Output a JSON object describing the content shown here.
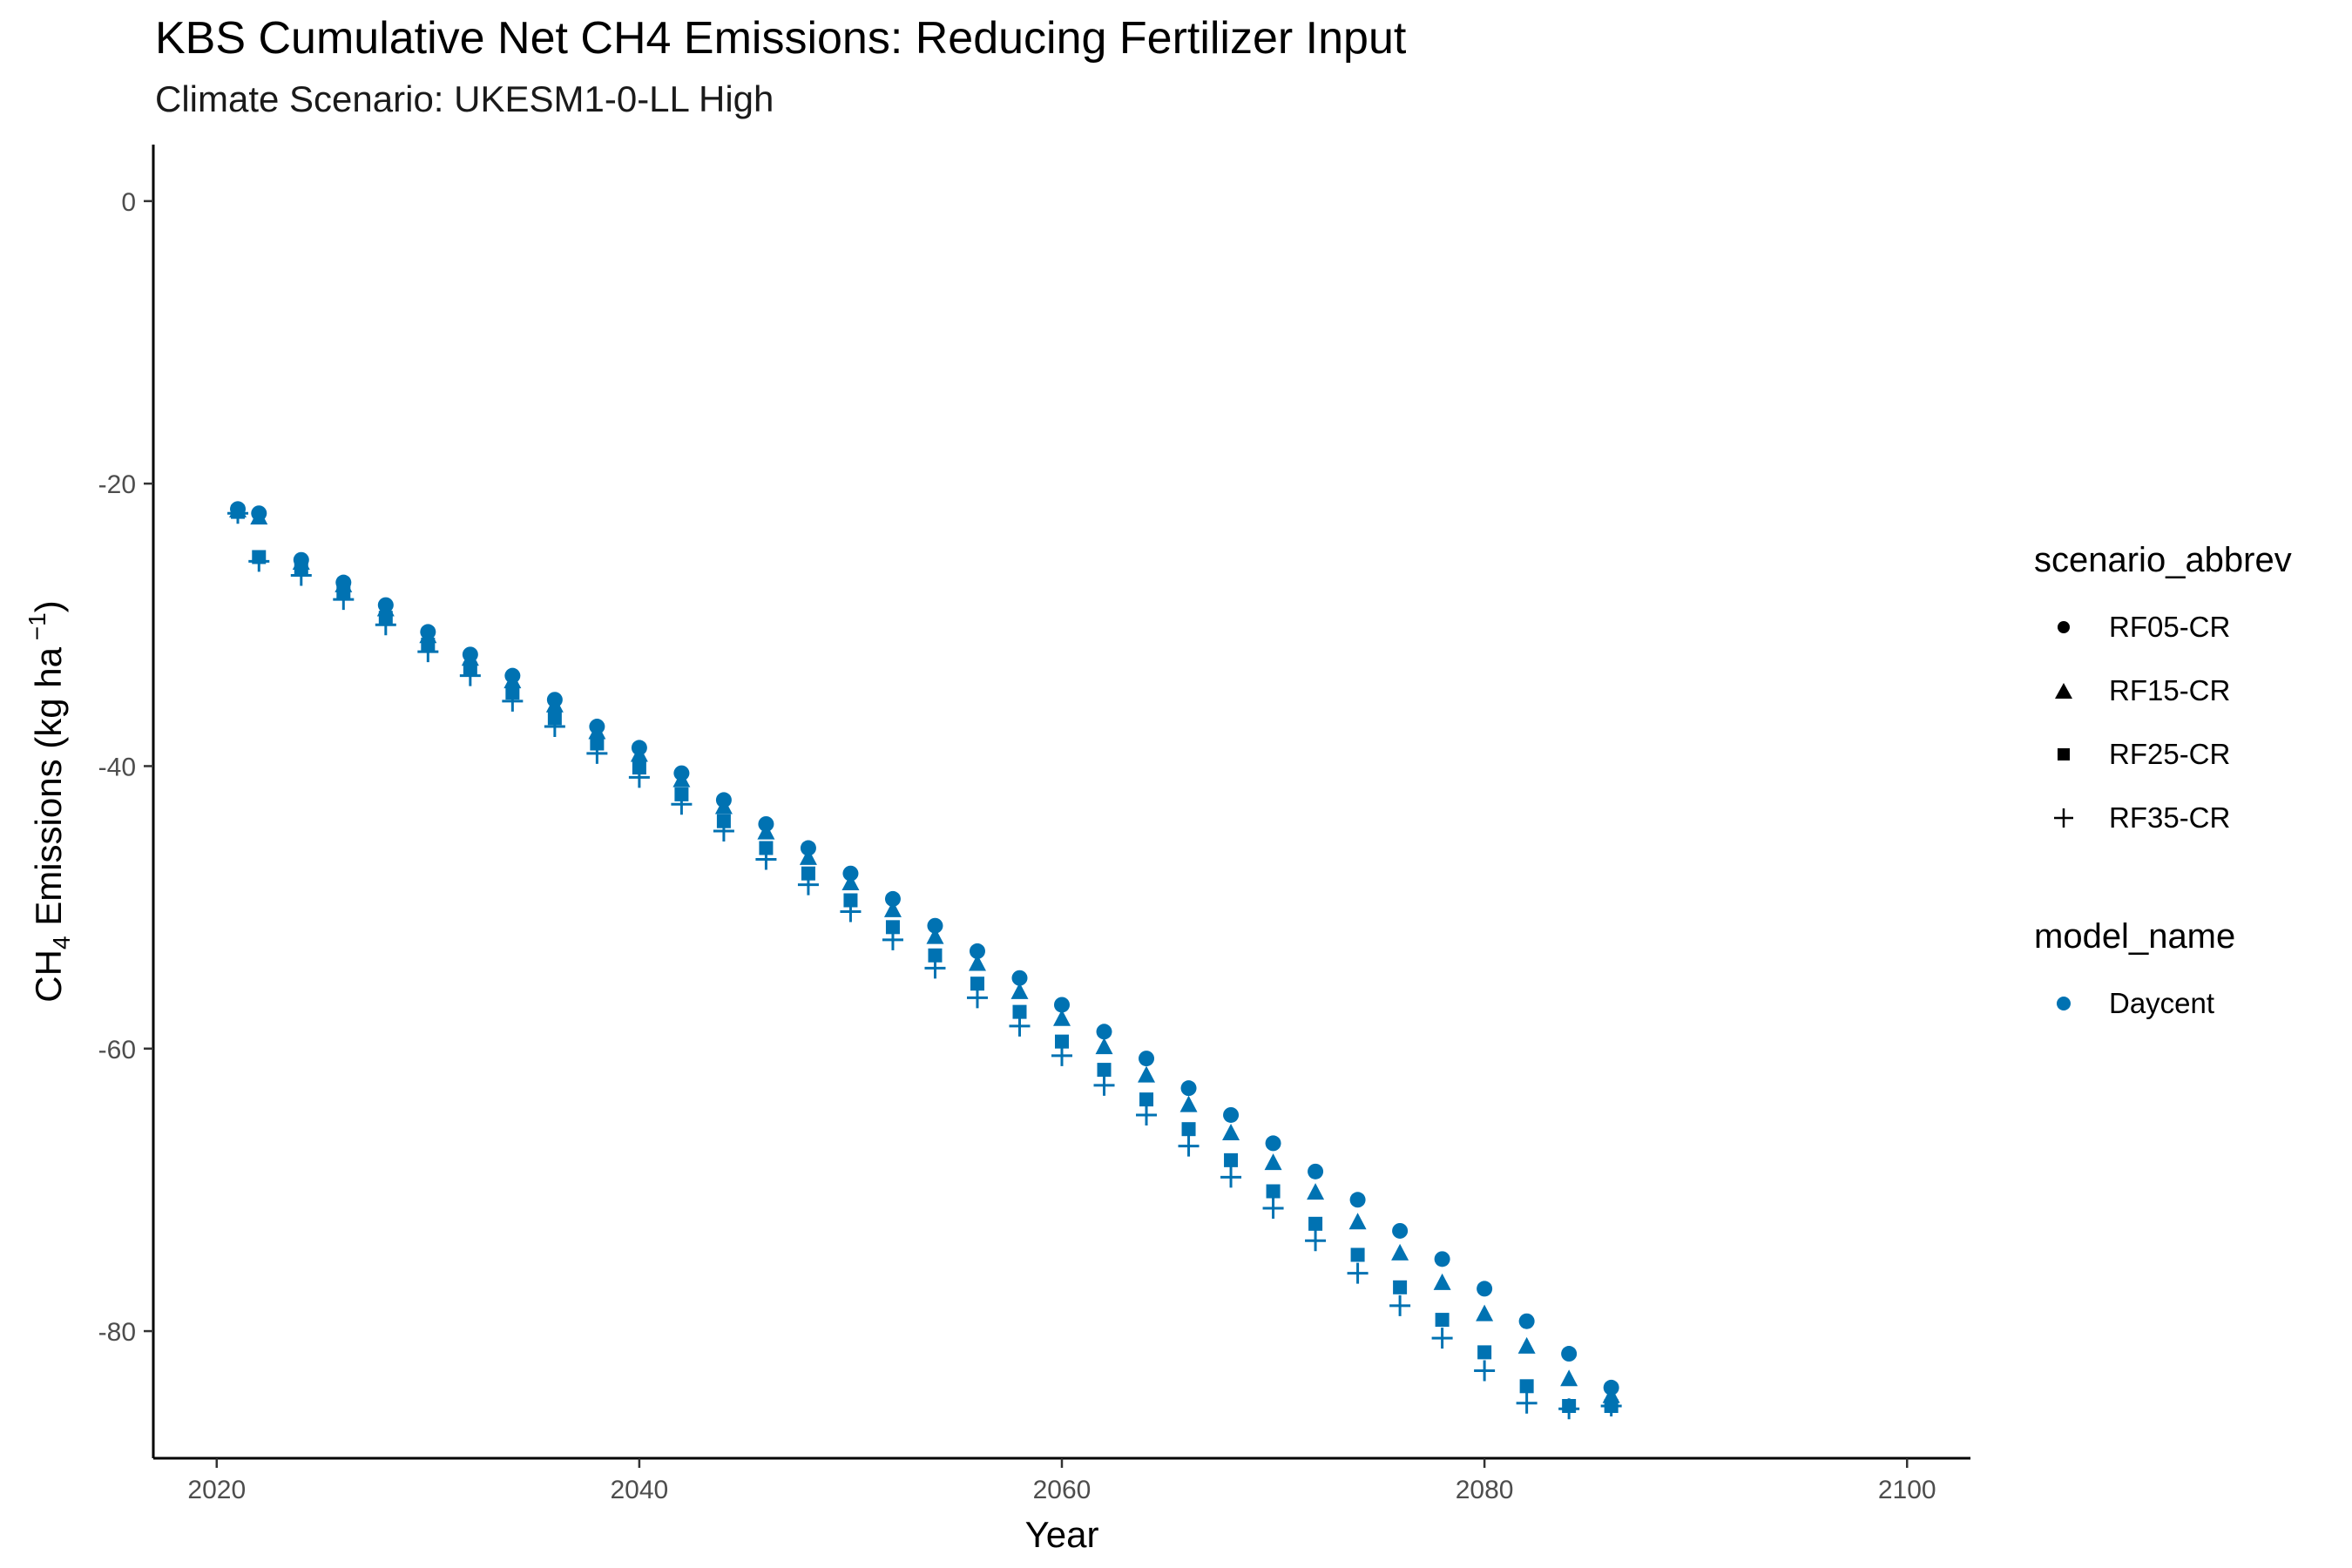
{
  "chart_data": {
    "type": "scatter",
    "title": "KBS  Cumulative Net CH4 Emissions: Reducing Fertilizer Input",
    "subtitle": "Climate Scenario: UKESM1-0-LL High",
    "xlabel": "Year",
    "ylabel": "CH4 Emissions (kg ha -1)",
    "xlim": [
      2017,
      2103
    ],
    "ylim": [
      -89,
      4
    ],
    "x_ticks": [
      2020,
      2040,
      2060,
      2080,
      2100
    ],
    "x_tick_labels": [
      "2020",
      "2040",
      "2060",
      "2080",
      "2100"
    ],
    "y_ticks": [
      0,
      -20,
      -40,
      -60,
      -80
    ],
    "y_tick_labels": [
      "0",
      "-20",
      "-40",
      "-60",
      "-80"
    ],
    "grid": false,
    "point_color": "#0072B2",
    "legend_position": "right",
    "legend": {
      "shape_title": "scenario_abbrev",
      "shape_entries": [
        {
          "label": "RF05-CR",
          "shape": "circle"
        },
        {
          "label": "RF15-CR",
          "shape": "triangle"
        },
        {
          "label": "RF25-CR",
          "shape": "square"
        },
        {
          "label": "RF35-CR",
          "shape": "plus"
        }
      ],
      "color_title": "model_name",
      "color_entries": [
        {
          "label": "Daycent",
          "color": "#0072B2"
        }
      ]
    },
    "series": [
      {
        "model": "Daycent",
        "scenario": "RF05-CR",
        "x": [
          2021,
          2022,
          2024,
          2026,
          2028,
          2030,
          2032,
          2034,
          2036,
          2038,
          2040,
          2042,
          2044,
          2046,
          2048,
          2050,
          2052,
          2054,
          2056,
          2058,
          2060,
          2062,
          2064,
          2066,
          2068,
          2070,
          2072,
          2074,
          2076,
          2078,
          2080,
          2082,
          2084,
          2086
        ],
        "y": [
          -21.8,
          -22.1,
          -25.4,
          -27.0,
          -28.6,
          -30.5,
          -32.1,
          -33.6,
          -35.3,
          -37.2,
          -38.7,
          -40.5,
          -42.4,
          -44.1,
          -45.8,
          -47.6,
          -49.4,
          -51.3,
          -53.1,
          -55.0,
          -56.9,
          -58.8,
          -60.7,
          -62.8,
          -64.7,
          -66.7,
          -68.7,
          -70.7,
          -72.9,
          -74.9,
          -77.0,
          -79.3,
          -81.6,
          -84.0
        ]
      },
      {
        "model": "Daycent",
        "scenario": "RF15-CR",
        "x": [
          2021,
          2022,
          2024,
          2026,
          2028,
          2030,
          2032,
          2034,
          2036,
          2038,
          2040,
          2042,
          2044,
          2046,
          2048,
          2050,
          2052,
          2054,
          2056,
          2058,
          2060,
          2062,
          2064,
          2066,
          2068,
          2070,
          2072,
          2074,
          2076,
          2078,
          2080,
          2082,
          2084,
          2086
        ],
        "y": [
          -21.9,
          -22.4,
          -25.6,
          -27.2,
          -28.9,
          -30.8,
          -32.4,
          -34.0,
          -35.7,
          -37.6,
          -39.2,
          -41.0,
          -42.9,
          -44.7,
          -46.5,
          -48.3,
          -50.2,
          -52.1,
          -54.0,
          -56.0,
          -57.9,
          -59.9,
          -61.9,
          -64.0,
          -66.0,
          -68.1,
          -70.2,
          -72.3,
          -74.5,
          -76.6,
          -78.8,
          -81.1,
          -83.4,
          -84.6
        ]
      },
      {
        "model": "Daycent",
        "scenario": "RF25-CR",
        "x": [
          2021,
          2022,
          2024,
          2026,
          2028,
          2030,
          2032,
          2034,
          2036,
          2038,
          2040,
          2042,
          2044,
          2046,
          2048,
          2050,
          2052,
          2054,
          2056,
          2058,
          2060,
          2062,
          2064,
          2066,
          2068,
          2070,
          2072,
          2074,
          2076,
          2078,
          2080,
          2082,
          2084,
          2086
        ],
        "y": [
          -22.0,
          -25.2,
          -26.1,
          -27.7,
          -29.5,
          -31.4,
          -33.1,
          -34.8,
          -36.6,
          -38.4,
          -40.1,
          -42.0,
          -43.9,
          -45.8,
          -47.6,
          -49.5,
          -51.4,
          -53.4,
          -55.4,
          -57.4,
          -59.5,
          -61.5,
          -63.6,
          -65.7,
          -67.9,
          -70.1,
          -72.4,
          -74.6,
          -76.9,
          -79.2,
          -81.5,
          -83.9,
          -85.3,
          -85.3
        ]
      },
      {
        "model": "Daycent",
        "scenario": "RF35-CR",
        "x": [
          2021,
          2022,
          2024,
          2026,
          2028,
          2030,
          2032,
          2034,
          2036,
          2038,
          2040,
          2042,
          2044,
          2046,
          2048,
          2050,
          2052,
          2054,
          2056,
          2058,
          2060,
          2062,
          2064,
          2066,
          2068,
          2070,
          2072,
          2074,
          2076,
          2078,
          2080,
          2082,
          2084,
          2086
        ],
        "y": [
          -22.1,
          -25.5,
          -26.5,
          -28.2,
          -30.0,
          -31.9,
          -33.6,
          -35.4,
          -37.2,
          -39.1,
          -40.8,
          -42.7,
          -44.6,
          -46.6,
          -48.4,
          -50.3,
          -52.3,
          -54.3,
          -56.4,
          -58.4,
          -60.5,
          -62.6,
          -64.7,
          -66.9,
          -69.1,
          -71.3,
          -73.6,
          -75.9,
          -78.2,
          -80.5,
          -82.8,
          -85.1,
          -85.5,
          -85.3
        ]
      }
    ]
  }
}
